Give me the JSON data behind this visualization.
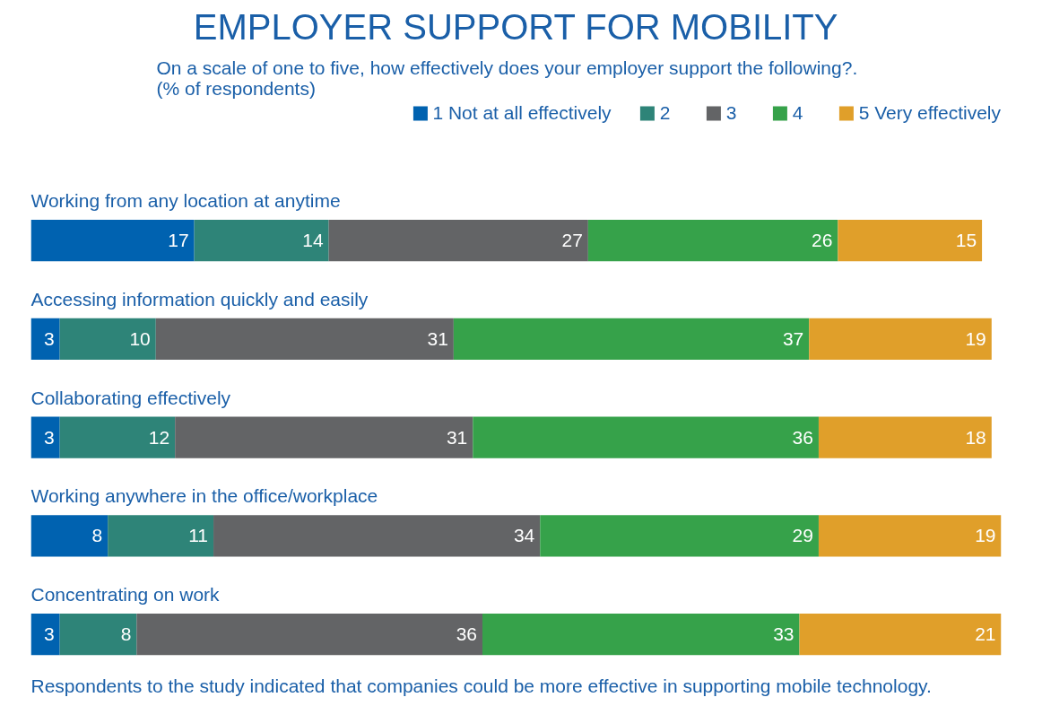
{
  "chart_data": {
    "type": "bar",
    "orientation": "horizontal",
    "stacked": true,
    "data_labels": true,
    "legend": "top right",
    "grid": false,
    "title": "EMPLOYER SUPPORT FOR MOBILITY",
    "subtitle": "On a scale of one to five, how effectively does your employer support the following?.\n(% of respondents)",
    "categories": [
      "Working from any location at anytime",
      "Accessing information quickly and easily",
      "Collaborating effectively",
      "Working anywhere in the office/workplace",
      "Concentrating on work"
    ],
    "series": [
      {
        "name": "1 Not at all effectively",
        "color": "#0062b0",
        "values": [
          17,
          3,
          3,
          8,
          3
        ]
      },
      {
        "name": "2",
        "color": "#2e8478",
        "values": [
          14,
          10,
          12,
          11,
          8
        ]
      },
      {
        "name": "3",
        "color": "#636466",
        "values": [
          27,
          31,
          31,
          34,
          36
        ]
      },
      {
        "name": "4",
        "color": "#36a24a",
        "values": [
          26,
          37,
          36,
          29,
          33
        ]
      },
      {
        "name": "5 Very effectively",
        "color": "#e09f2a",
        "values": [
          15,
          19,
          18,
          19,
          21
        ]
      }
    ],
    "annotations": [
      "Respondents to the study indicated that companies could be more effective in supporting mobile technology."
    ]
  }
}
